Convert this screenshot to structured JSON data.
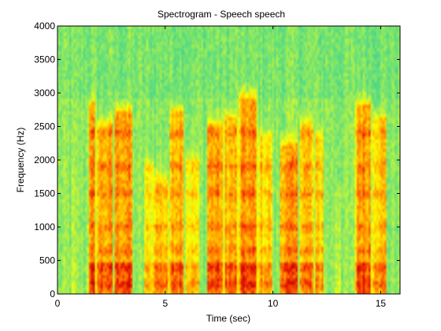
{
  "chart_data": {
    "type": "heatmap",
    "title": "Spectrogram - Speech speech",
    "xlabel": "Time (sec)",
    "ylabel": "Frequency (Hz)",
    "xlim": [
      0,
      15.9
    ],
    "ylim": [
      0,
      4000
    ],
    "x_ticks": [
      0,
      5,
      10,
      15
    ],
    "y_ticks": [
      0,
      500,
      1000,
      1500,
      2000,
      2500,
      3000,
      3500,
      4000
    ],
    "colormap": "jet",
    "colormap_stops": [
      "#33cc99",
      "#66e07a",
      "#b0f04a",
      "#ffff00",
      "#ffbb00",
      "#ff6600",
      "#e01000",
      "#b00000"
    ],
    "grid": false,
    "speech_segments_sec": [
      [
        0.6,
        0.9,
        0.4,
        1800
      ],
      [
        1.4,
        1.8,
        0.98,
        2800
      ],
      [
        1.8,
        2.6,
        0.92,
        2500
      ],
      [
        2.6,
        3.5,
        0.98,
        2700
      ],
      [
        4.0,
        4.5,
        0.7,
        1900
      ],
      [
        4.4,
        5.2,
        0.85,
        1700
      ],
      [
        5.2,
        5.9,
        0.95,
        2700
      ],
      [
        5.9,
        6.6,
        0.72,
        2000
      ],
      [
        6.9,
        7.7,
        0.95,
        2500
      ],
      [
        7.7,
        8.4,
        0.9,
        2600
      ],
      [
        8.4,
        9.3,
        0.98,
        2900
      ],
      [
        9.3,
        10.0,
        0.8,
        2300
      ],
      [
        10.3,
        11.2,
        0.95,
        2200
      ],
      [
        11.2,
        11.9,
        0.88,
        2500
      ],
      [
        11.9,
        12.4,
        0.8,
        2300
      ],
      [
        12.8,
        13.2,
        0.45,
        1600
      ],
      [
        13.8,
        14.6,
        0.98,
        2800
      ],
      [
        14.6,
        15.3,
        0.85,
        2600
      ]
    ]
  }
}
